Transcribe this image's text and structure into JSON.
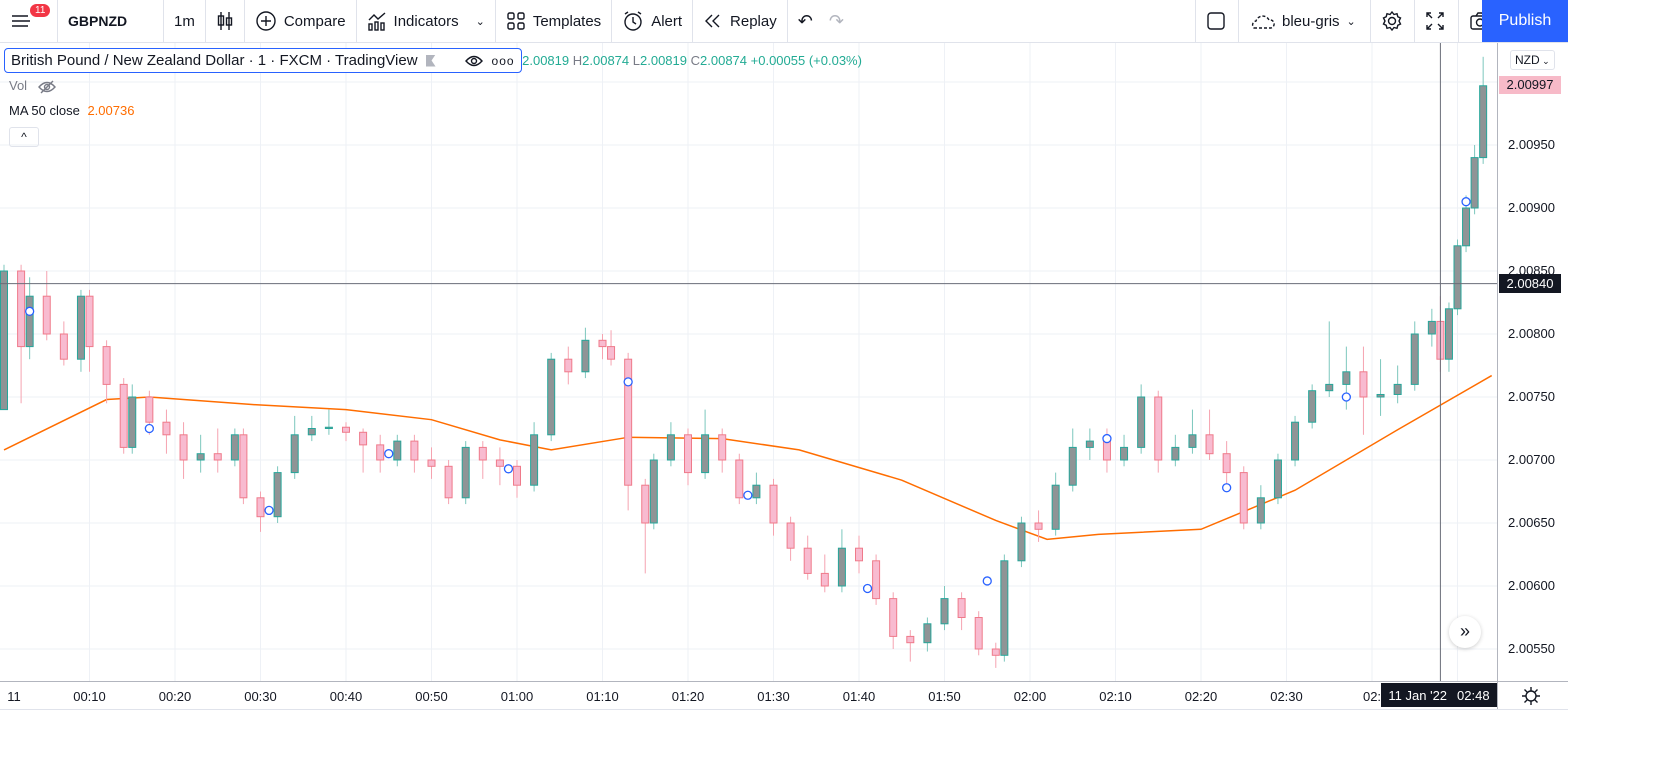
{
  "toolbar": {
    "notifications": "11",
    "symbol": "GBPNZD",
    "interval": "1m",
    "compare": "Compare",
    "indicators": "Indicators",
    "templates": "Templates",
    "alert": "Alert",
    "replay": "Replay",
    "layout_name": "bleu-gris",
    "publish": "Publish"
  },
  "legend": {
    "title": "British Pound / New Zealand Dollar · 1 · FXCM · TradingView",
    "ohlc": {
      "o_label": "O",
      "o": "2.00819",
      "h_label": "H",
      "h": "2.00874",
      "l_label": "L",
      "l": "2.00819",
      "c_label": "C",
      "c": "2.00874",
      "change": "+0.00055 (+0.03%)"
    },
    "vol": "Vol",
    "ma_label": "MA 50 close",
    "ma_value": "2.00736"
  },
  "price_axis": {
    "currency": "NZD",
    "labels": [
      "2.00950",
      "2.00900",
      "2.00850",
      "2.00800",
      "2.00750",
      "2.00700",
      "2.00650",
      "2.00600",
      "2.00550"
    ],
    "last_price": "2.00997",
    "crosshair_price": "2.00840"
  },
  "time_axis": {
    "labels": [
      "11",
      "00:10",
      "00:20",
      "00:30",
      "00:40",
      "00:50",
      "01:00",
      "01:10",
      "01:20",
      "01:30",
      "01:40",
      "01:50",
      "02:00",
      "02:10",
      "02:20",
      "02:30",
      "02:"
    ],
    "crosshair_date": "11 Jan '22",
    "crosshair_time": "02:48"
  },
  "colors": {
    "up_body": "#8f9496",
    "up_border": "#26a69a",
    "down_body": "#f8bbd0",
    "down_border": "#ef7a8a",
    "ma": "#ff6d00",
    "accent": "#2962ff",
    "marker": "#2962ff"
  },
  "chart_data": {
    "type": "candlestick",
    "symbol": "GBPNZD",
    "interval": "1m",
    "ylim": [
      2.0053,
      2.0102
    ],
    "xlim": [
      "00:00",
      "02:55"
    ],
    "grid": true,
    "candles_t_o_h_l_c": [
      [
        "00:00",
        2.0074,
        2.00855,
        2.0074,
        2.0085
      ],
      [
        "00:02",
        2.0085,
        2.00855,
        2.00745,
        2.0079
      ],
      [
        "00:03",
        2.0079,
        2.00845,
        2.0078,
        2.0083
      ],
      [
        "00:05",
        2.0083,
        2.0085,
        2.00795,
        2.008
      ],
      [
        "00:07",
        2.008,
        2.0081,
        2.00775,
        2.0078
      ],
      [
        "00:09",
        2.0078,
        2.00835,
        2.0077,
        2.0083
      ],
      [
        "00:10",
        2.0083,
        2.00835,
        2.0077,
        2.0079
      ],
      [
        "00:12",
        2.0079,
        2.00795,
        2.00745,
        2.0076
      ],
      [
        "00:14",
        2.0076,
        2.00765,
        2.00705,
        2.0071
      ],
      [
        "00:15",
        2.0071,
        2.0076,
        2.00705,
        2.0075
      ],
      [
        "00:17",
        2.0075,
        2.00755,
        2.0072,
        2.0073
      ],
      [
        "00:19",
        2.0073,
        2.0074,
        2.00705,
        2.0072
      ],
      [
        "00:21",
        2.0072,
        2.0073,
        2.00685,
        2.007
      ],
      [
        "00:23",
        2.007,
        2.0072,
        2.0069,
        2.00705
      ],
      [
        "00:25",
        2.00705,
        2.00725,
        2.0069,
        2.007
      ],
      [
        "00:27",
        2.007,
        2.00725,
        2.00695,
        2.0072
      ],
      [
        "00:28",
        2.0072,
        2.00725,
        2.00665,
        2.0067
      ],
      [
        "00:30",
        2.0067,
        2.00675,
        2.00643,
        2.00655
      ],
      [
        "00:32",
        2.00655,
        2.00695,
        2.0065,
        2.0069
      ],
      [
        "00:34",
        2.0069,
        2.00735,
        2.00685,
        2.0072
      ],
      [
        "00:36",
        2.0072,
        2.00735,
        2.00715,
        2.00725
      ],
      [
        "00:38",
        2.00725,
        2.0074,
        2.0072,
        2.00726
      ],
      [
        "00:40",
        2.00726,
        2.0073,
        2.00715,
        2.00722
      ],
      [
        "00:42",
        2.00722,
        2.00725,
        2.0069,
        2.00712
      ],
      [
        "00:44",
        2.00712,
        2.0072,
        2.0069,
        2.007
      ],
      [
        "00:46",
        2.007,
        2.0072,
        2.00695,
        2.00715
      ],
      [
        "00:48",
        2.00715,
        2.0072,
        2.0069,
        2.007
      ],
      [
        "00:50",
        2.007,
        2.0071,
        2.00685,
        2.00695
      ],
      [
        "00:52",
        2.00695,
        2.007,
        2.00665,
        2.0067
      ],
      [
        "00:54",
        2.0067,
        2.00715,
        2.00665,
        2.0071
      ],
      [
        "00:56",
        2.0071,
        2.00715,
        2.00685,
        2.007
      ],
      [
        "00:58",
        2.007,
        2.0071,
        2.0068,
        2.00695
      ],
      [
        "01:00",
        2.00695,
        2.007,
        2.0067,
        2.0068
      ],
      [
        "01:02",
        2.0068,
        2.0073,
        2.00675,
        2.0072
      ],
      [
        "01:04",
        2.0072,
        2.00785,
        2.00715,
        2.0078
      ],
      [
        "01:06",
        2.0078,
        2.0079,
        2.0076,
        2.0077
      ],
      [
        "01:08",
        2.0077,
        2.00805,
        2.00765,
        2.00795
      ],
      [
        "01:10",
        2.00795,
        2.008,
        2.0078,
        2.0079
      ],
      [
        "01:11",
        2.0079,
        2.00803,
        2.00775,
        2.0078
      ],
      [
        "01:13",
        2.0078,
        2.00785,
        2.0066,
        2.0068
      ],
      [
        "01:15",
        2.0068,
        2.00685,
        2.0061,
        2.0065
      ],
      [
        "01:16",
        2.0065,
        2.00705,
        2.00645,
        2.007
      ],
      [
        "01:18",
        2.007,
        2.0073,
        2.00695,
        2.0072
      ],
      [
        "01:20",
        2.0072,
        2.00725,
        2.0068,
        2.0069
      ],
      [
        "01:22",
        2.0069,
        2.0074,
        2.00685,
        2.0072
      ],
      [
        "01:24",
        2.0072,
        2.00725,
        2.0069,
        2.007
      ],
      [
        "01:26",
        2.007,
        2.00705,
        2.00665,
        2.0067
      ],
      [
        "01:28",
        2.0067,
        2.0069,
        2.00665,
        2.0068
      ],
      [
        "01:30",
        2.0068,
        2.00685,
        2.0064,
        2.0065
      ],
      [
        "01:32",
        2.0065,
        2.00655,
        2.0062,
        2.0063
      ],
      [
        "01:34",
        2.0063,
        2.0064,
        2.00605,
        2.0061
      ],
      [
        "01:36",
        2.0061,
        2.00625,
        2.00595,
        2.006
      ],
      [
        "01:38",
        2.006,
        2.00645,
        2.00595,
        2.0063
      ],
      [
        "01:40",
        2.0063,
        2.0064,
        2.0061,
        2.0062
      ],
      [
        "01:42",
        2.0062,
        2.00625,
        2.00585,
        2.0059
      ],
      [
        "01:44",
        2.0059,
        2.00595,
        2.0055,
        2.0056
      ],
      [
        "01:46",
        2.0056,
        2.00565,
        2.0054,
        2.00555
      ],
      [
        "01:48",
        2.00555,
        2.00575,
        2.00548,
        2.0057
      ],
      [
        "01:50",
        2.0057,
        2.006,
        2.00565,
        2.0059
      ],
      [
        "01:52",
        2.0059,
        2.00595,
        2.00565,
        2.00575
      ],
      [
        "01:54",
        2.00575,
        2.0058,
        2.00545,
        2.0055
      ],
      [
        "01:56",
        2.0055,
        2.00555,
        2.00535,
        2.00545
      ],
      [
        "01:57",
        2.00545,
        2.00625,
        2.0054,
        2.0062
      ],
      [
        "01:59",
        2.0062,
        2.00655,
        2.00615,
        2.0065
      ],
      [
        "02:01",
        2.0065,
        2.0066,
        2.00635,
        2.00645
      ],
      [
        "02:03",
        2.00645,
        2.0069,
        2.0064,
        2.0068
      ],
      [
        "02:05",
        2.0068,
        2.00725,
        2.00675,
        2.0071
      ],
      [
        "02:07",
        2.0071,
        2.00725,
        2.007,
        2.00715
      ],
      [
        "02:09",
        2.00715,
        2.00725,
        2.0069,
        2.007
      ],
      [
        "02:11",
        2.007,
        2.0072,
        2.00695,
        2.0071
      ],
      [
        "02:13",
        2.0071,
        2.0076,
        2.00705,
        2.0075
      ],
      [
        "02:15",
        2.0075,
        2.00755,
        2.0069,
        2.007
      ],
      [
        "02:17",
        2.007,
        2.0072,
        2.00695,
        2.0071
      ],
      [
        "02:19",
        2.0071,
        2.0074,
        2.00705,
        2.0072
      ],
      [
        "02:21",
        2.0072,
        2.0074,
        2.007,
        2.00705
      ],
      [
        "02:23",
        2.00705,
        2.00715,
        2.00675,
        2.0069
      ],
      [
        "02:25",
        2.0069,
        2.00695,
        2.00645,
        2.0065
      ],
      [
        "02:27",
        2.0065,
        2.0068,
        2.00645,
        2.0067
      ],
      [
        "02:29",
        2.0067,
        2.00705,
        2.00665,
        2.007
      ],
      [
        "02:31",
        2.007,
        2.00735,
        2.00695,
        2.0073
      ],
      [
        "02:33",
        2.0073,
        2.0076,
        2.00725,
        2.00755
      ],
      [
        "02:35",
        2.00755,
        2.0081,
        2.0075,
        2.0076
      ],
      [
        "02:37",
        2.0076,
        2.0079,
        2.0074,
        2.0077
      ],
      [
        "02:39",
        2.0077,
        2.0079,
        2.0072,
        2.0075
      ],
      [
        "02:41",
        2.0075,
        2.0078,
        2.00735,
        2.00752
      ],
      [
        "02:43",
        2.00752,
        2.00775,
        2.00745,
        2.0076
      ],
      [
        "02:45",
        2.0076,
        2.0081,
        2.00755,
        2.008
      ],
      [
        "02:47",
        2.008,
        2.0082,
        2.0079,
        2.0081
      ],
      [
        "02:48",
        2.0081,
        2.0083,
        2.0077,
        2.0078
      ],
      [
        "02:49",
        2.0078,
        2.00825,
        2.0077,
        2.0082
      ],
      [
        "02:50",
        2.0082,
        2.00875,
        2.00815,
        2.0087
      ],
      [
        "02:51",
        2.0087,
        2.0091,
        2.00865,
        2.009
      ],
      [
        "02:52",
        2.009,
        2.0095,
        2.00895,
        2.0094
      ],
      [
        "02:53",
        2.0094,
        2.0102,
        2.00935,
        2.00997
      ]
    ],
    "ma50_t_v": [
      [
        "00:00",
        2.00708
      ],
      [
        "00:12",
        2.00748
      ],
      [
        "00:17",
        2.0075
      ],
      [
        "00:29",
        2.00744
      ],
      [
        "00:40",
        2.0074
      ],
      [
        "00:50",
        2.00732
      ],
      [
        "00:58",
        2.00716
      ],
      [
        "01:04",
        2.00708
      ],
      [
        "01:13",
        2.00718
      ],
      [
        "01:24",
        2.00717
      ],
      [
        "01:33",
        2.00708
      ],
      [
        "01:45",
        2.00684
      ],
      [
        "01:56",
        2.00652
      ],
      [
        "02:02",
        2.00637
      ],
      [
        "02:08",
        2.00641
      ],
      [
        "02:20",
        2.00645
      ],
      [
        "02:31",
        2.00676
      ],
      [
        "02:43",
        2.00724
      ],
      [
        "02:54",
        2.00767
      ]
    ],
    "markers_t_v": [
      [
        "00:03",
        2.00818
      ],
      [
        "00:17",
        2.00725
      ],
      [
        "00:31",
        2.0066
      ],
      [
        "00:45",
        2.00705
      ],
      [
        "00:59",
        2.00693
      ],
      [
        "01:13",
        2.00762
      ],
      [
        "01:27",
        2.00672
      ],
      [
        "01:41",
        2.00598
      ],
      [
        "01:55",
        2.00604
      ],
      [
        "02:09",
        2.00717
      ],
      [
        "02:23",
        2.00678
      ],
      [
        "02:37",
        2.0075
      ],
      [
        "02:51",
        2.00905
      ]
    ],
    "crosshair": {
      "time": "02:48",
      "price": 2.0084
    }
  }
}
